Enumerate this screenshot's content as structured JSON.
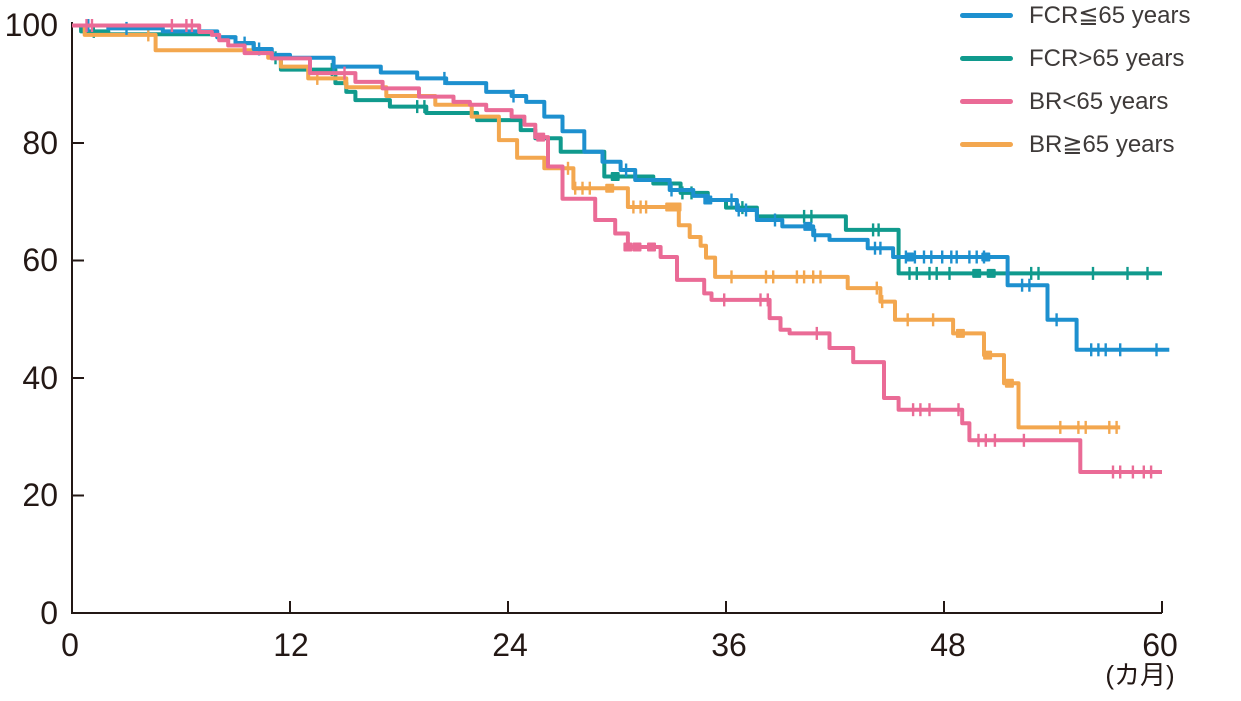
{
  "chart_data": {
    "type": "line",
    "subtype": "kaplan-meier-step",
    "title": "",
    "xlabel": "(カ月)",
    "ylabel": "",
    "xlim": [
      0,
      60
    ],
    "ylim": [
      0,
      100
    ],
    "grid": false,
    "legend_position": "top-right",
    "x_tick_labels": [
      "0",
      "12",
      "24",
      "36",
      "48",
      "60"
    ],
    "y_tick_labels": [
      "100",
      "80",
      "60",
      "40",
      "20",
      "0"
    ],
    "axis_color": "#231815",
    "legend_text_color": "#3e3a39",
    "series": [
      {
        "name": "FCR≦65 years",
        "color": "#1d90cf",
        "points": [
          [
            0,
            100
          ],
          [
            2,
            99.5
          ],
          [
            5,
            99
          ],
          [
            8,
            98
          ],
          [
            9,
            97
          ],
          [
            10,
            96
          ],
          [
            11,
            95
          ],
          [
            12,
            94.5
          ],
          [
            14.4,
            93
          ],
          [
            17,
            92
          ],
          [
            19,
            91
          ],
          [
            20.6,
            90.2
          ],
          [
            22.8,
            88.7
          ],
          [
            24.2,
            88
          ],
          [
            25,
            87
          ],
          [
            26,
            84.5
          ],
          [
            27,
            82
          ],
          [
            28.2,
            78.5
          ],
          [
            29.2,
            76.8
          ],
          [
            30.2,
            75.4
          ],
          [
            31,
            73.7
          ],
          [
            32.9,
            72
          ],
          [
            34.2,
            71
          ],
          [
            35,
            70.3
          ],
          [
            36.6,
            68.6
          ],
          [
            37.7,
            66.9
          ],
          [
            39.1,
            65.8
          ],
          [
            40.8,
            64.3
          ],
          [
            41.7,
            63.5
          ],
          [
            43.8,
            62.1
          ],
          [
            45.2,
            60.6
          ],
          [
            51.5,
            55.8
          ],
          [
            53.7,
            49.9
          ],
          [
            55.3,
            44.8
          ],
          [
            60.4,
            44.8
          ]
        ],
        "censor_marks": [
          0.9,
          3,
          9.5,
          10.3,
          14.4,
          20.5,
          24.3,
          30.5,
          33,
          36.3,
          36.7,
          37.1,
          38.7,
          40.9,
          44.2,
          44.5,
          45.9,
          46.4,
          46.9,
          47.3,
          47.9,
          48.4,
          48.7,
          49.4,
          49.8,
          50.2,
          52.3,
          52.7,
          54.2,
          56.1,
          56.5,
          56.9,
          57.7,
          59.7
        ],
        "censor_marks_bold": [
          35,
          40.5,
          46.1,
          50.3
        ]
      },
      {
        "name": "FCR>65 years",
        "color": "#109a8d",
        "points": [
          [
            0,
            100
          ],
          [
            0.5,
            99
          ],
          [
            2,
            98.5
          ],
          [
            8,
            98
          ],
          [
            9,
            97
          ],
          [
            10,
            95.5
          ],
          [
            11,
            94.5
          ],
          [
            11.5,
            92.5
          ],
          [
            14.5,
            90.2
          ],
          [
            15.1,
            88.7
          ],
          [
            15.6,
            87.3
          ],
          [
            17.5,
            86.2
          ],
          [
            19.5,
            85.1
          ],
          [
            22.3,
            83.9
          ],
          [
            24.7,
            82.2
          ],
          [
            25.5,
            80.8
          ],
          [
            26.9,
            78.5
          ],
          [
            29.3,
            74.3
          ],
          [
            32,
            73.1
          ],
          [
            33.5,
            71.5
          ],
          [
            35,
            70.3
          ],
          [
            36,
            69
          ],
          [
            37.7,
            67.5
          ],
          [
            42.6,
            65.2
          ],
          [
            45.5,
            57.8
          ],
          [
            60,
            57.8
          ]
        ],
        "censor_marks": [
          1.2,
          11.2,
          14.3,
          19,
          19.4,
          33.6,
          34.1,
          36.9,
          40.3,
          40.7,
          44.1,
          44.4,
          46.1,
          46.5,
          47.2,
          47.6,
          48.3,
          52.8,
          53.2,
          56.2,
          58.1,
          59.2
        ],
        "censor_marks_bold": [
          29.9,
          49.8,
          50.6
        ]
      },
      {
        "name": "BR<65 years",
        "color": "#ea6b96",
        "points": [
          [
            0,
            100
          ],
          [
            7,
            98.9
          ],
          [
            7.7,
            98.4
          ],
          [
            8.1,
            97.5
          ],
          [
            8.6,
            96.6
          ],
          [
            9.5,
            95.3
          ],
          [
            11,
            94.4
          ],
          [
            13.1,
            91.9
          ],
          [
            15.6,
            90.4
          ],
          [
            17.1,
            89.3
          ],
          [
            19.1,
            87.9
          ],
          [
            21,
            87
          ],
          [
            21.9,
            86.5
          ],
          [
            22.8,
            85.6
          ],
          [
            24.2,
            84.5
          ],
          [
            24.9,
            83.1
          ],
          [
            25.5,
            81
          ],
          [
            26.2,
            76
          ],
          [
            27,
            70.5
          ],
          [
            28.8,
            66.9
          ],
          [
            29.9,
            64.6
          ],
          [
            30.6,
            62.3
          ],
          [
            32.4,
            60.6
          ],
          [
            33.3,
            56.7
          ],
          [
            34.8,
            54.4
          ],
          [
            35.2,
            53.3
          ],
          [
            38.4,
            50.2
          ],
          [
            39,
            48.2
          ],
          [
            39.5,
            47.6
          ],
          [
            41.7,
            45.1
          ],
          [
            43,
            42.7
          ],
          [
            44.7,
            36.6
          ],
          [
            45.5,
            34.6
          ],
          [
            49,
            32.3
          ],
          [
            49.4,
            29.4
          ],
          [
            55.5,
            24
          ],
          [
            60,
            24
          ]
        ],
        "censor_marks": [
          0.8,
          1.1,
          5.5,
          6.3,
          6.6,
          15,
          35.9,
          37.9,
          38.3,
          41,
          46.3,
          46.7,
          47.2,
          48.8,
          49.9,
          50.3,
          50.8,
          52.4,
          57.3,
          57.7,
          58.4,
          59,
          59.4
        ],
        "censor_marks_bold": [
          25.8,
          30.6,
          31.1,
          31.9
        ]
      },
      {
        "name": "BR≧65 years",
        "color": "#f3a74f",
        "points": [
          [
            0,
            100
          ],
          [
            0.7,
            98.4
          ],
          [
            4.6,
            95.8
          ],
          [
            10.8,
            94.5
          ],
          [
            11.5,
            93
          ],
          [
            13,
            91
          ],
          [
            15.1,
            89.5
          ],
          [
            17.3,
            88
          ],
          [
            20,
            86.5
          ],
          [
            22,
            84.5
          ],
          [
            23.5,
            80.5
          ],
          [
            24.5,
            77.5
          ],
          [
            26,
            75.7
          ],
          [
            27.6,
            72.3
          ],
          [
            30.6,
            69.1
          ],
          [
            33.4,
            66
          ],
          [
            34,
            64
          ],
          [
            34.6,
            62.5
          ],
          [
            34.9,
            60.5
          ],
          [
            35.4,
            57.2
          ],
          [
            42.7,
            55.3
          ],
          [
            44.5,
            53
          ],
          [
            45.3,
            49.9
          ],
          [
            48.5,
            47.6
          ],
          [
            50.2,
            43.9
          ],
          [
            51.3,
            39.1
          ],
          [
            52.1,
            31.6
          ],
          [
            57.7,
            31.6
          ]
        ],
        "censor_marks": [
          4.2,
          13.5,
          15,
          27.3,
          27.7,
          28.1,
          28.5,
          30.9,
          31.3,
          31.6,
          36.3,
          38.2,
          38.6,
          39.9,
          40.3,
          40.8,
          41.2,
          44.3,
          44.6,
          46,
          47.4,
          54.4,
          55.4,
          55.8,
          57.1,
          57.5
        ],
        "censor_marks_bold": [
          29.6,
          32.9,
          33.3,
          48.9,
          50.4,
          51.6
        ]
      }
    ]
  }
}
